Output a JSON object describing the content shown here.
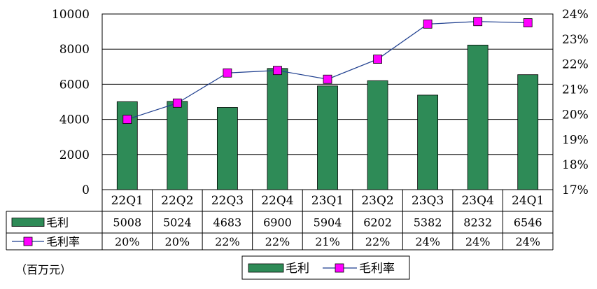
{
  "chart_data": {
    "type": "bar",
    "categories": [
      "22Q1",
      "22Q2",
      "22Q3",
      "22Q4",
      "23Q1",
      "23Q2",
      "23Q3",
      "23Q4",
      "24Q1"
    ],
    "series": [
      {
        "name": "毛利",
        "type": "bar",
        "axis": "left",
        "color": "#2e8b57",
        "values": [
          5008,
          5024,
          4683,
          6900,
          5904,
          6202,
          5382,
          8232,
          6546
        ]
      },
      {
        "name": "毛利率",
        "type": "line",
        "axis": "right",
        "color": "#ff00ff",
        "line_color": "#1f3f8f",
        "values": [
          19.8,
          20.45,
          21.65,
          21.75,
          21.4,
          22.2,
          23.6,
          23.7,
          23.65
        ]
      }
    ],
    "table_rows": [
      {
        "label": "毛利",
        "cells": [
          "5008",
          "5024",
          "4683",
          "6900",
          "5904",
          "6202",
          "5382",
          "8232",
          "6546"
        ]
      },
      {
        "label": "毛利率",
        "cells": [
          "20%",
          "20%",
          "22%",
          "22%",
          "21%",
          "22%",
          "24%",
          "24%",
          "24%"
        ]
      }
    ],
    "y_left": {
      "min": 0,
      "max": 10000,
      "ticks": [
        "0",
        "2000",
        "4000",
        "6000",
        "8000",
        "10000"
      ]
    },
    "y_right": {
      "min": 17,
      "max": 24,
      "ticks": [
        "17%",
        "18%",
        "19%",
        "20%",
        "21%",
        "22%",
        "23%",
        "24%"
      ]
    },
    "grid": true,
    "legend_position": "bottom",
    "unit_label": "（百万元）"
  }
}
